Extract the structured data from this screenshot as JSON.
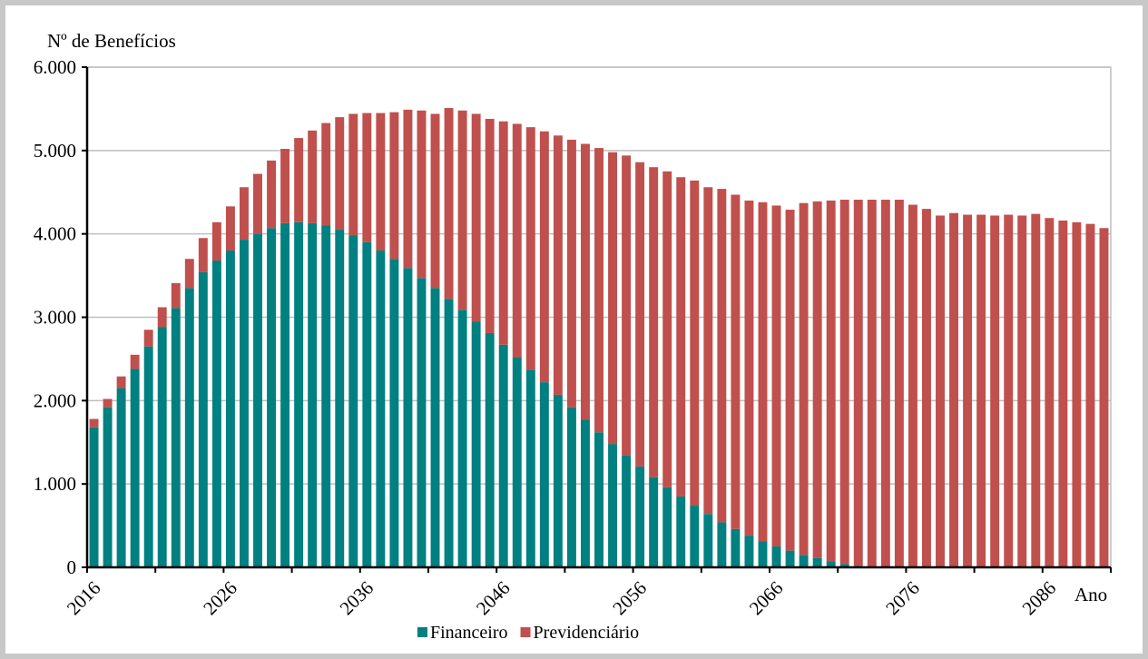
{
  "chart_data": {
    "type": "bar",
    "stacked": true,
    "ylabel": "Nº de Benefícios",
    "xlabel": "Ano",
    "ylim": [
      0,
      6000
    ],
    "yticks": [
      0,
      1000,
      2000,
      3000,
      4000,
      5000,
      6000
    ],
    "ytick_labels": [
      "0",
      "1.000",
      "2.000",
      "3.000",
      "4.000",
      "5.000",
      "6.000"
    ],
    "x_start_year": 2016,
    "x_end_year": 2090,
    "xtick_labels": [
      "2016",
      "2026",
      "2036",
      "2046",
      "2056",
      "2066",
      "2076",
      "2086"
    ],
    "grid": true,
    "legend_position": "bottom-center",
    "series": [
      {
        "name": "Financeiro",
        "color": "#008080",
        "values": [
          1680,
          1920,
          2150,
          2380,
          2650,
          2880,
          3110,
          3350,
          3540,
          3680,
          3800,
          3930,
          4000,
          4070,
          4130,
          4140,
          4130,
          4100,
          4050,
          3980,
          3900,
          3800,
          3700,
          3590,
          3470,
          3350,
          3220,
          3090,
          2950,
          2810,
          2670,
          2520,
          2370,
          2220,
          2070,
          1920,
          1770,
          1620,
          1480,
          1340,
          1210,
          1080,
          960,
          850,
          740,
          640,
          540,
          460,
          380,
          310,
          250,
          200,
          150,
          110,
          70,
          40,
          20,
          0,
          0,
          0,
          0,
          0,
          0,
          0,
          0,
          0,
          0,
          0,
          0,
          0,
          0,
          0,
          0,
          0,
          0
        ]
      },
      {
        "name": "Previdenciário",
        "color": "#c0504d",
        "values": [
          100,
          100,
          140,
          170,
          200,
          240,
          300,
          350,
          410,
          460,
          530,
          630,
          720,
          810,
          890,
          1010,
          1110,
          1230,
          1350,
          1460,
          1550,
          1650,
          1760,
          1900,
          2010,
          2090,
          2290,
          2390,
          2490,
          2570,
          2680,
          2800,
          2910,
          3010,
          3110,
          3210,
          3310,
          3410,
          3500,
          3600,
          3650,
          3720,
          3790,
          3830,
          3900,
          3920,
          4000,
          4010,
          4020,
          4070,
          4090,
          4090,
          4220,
          4280,
          4330,
          4370,
          4390,
          4410,
          4410,
          4410,
          4350,
          4300,
          4220,
          4250,
          4230,
          4230,
          4220,
          4230,
          4220,
          4240,
          4190,
          4160,
          4140,
          4120,
          4070
        ]
      }
    ]
  }
}
